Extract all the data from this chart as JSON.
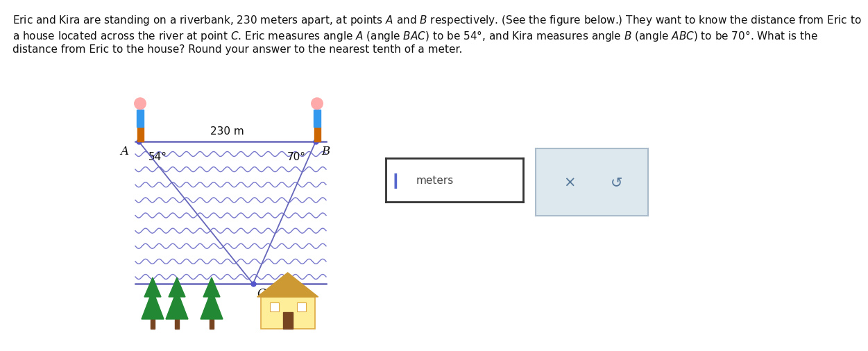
{
  "bg_color": "#ffffff",
  "text_color": "#000000",
  "line1": "Eric and Kira are standing on a riverbank, 230 meters apart, at points ",
  "line1b": "A",
  "line1c": " and ",
  "line1d": "B",
  "line1e": " respectively. (See the figure below.) They want to know the distance from Eric to",
  "line2": "a house located across the river at point ",
  "line2b": "C",
  "line2c": ". Eric measures angle ",
  "line2d": "A",
  "line2e": " (angle ",
  "line2f": "BAC",
  "line2g": ") to be 54°, and Kira measures angle ",
  "line2h": "B",
  "line2i": " (angle ",
  "line2j": "ABC",
  "line2k": ") to be 70°. What is the",
  "line3": "distance from Eric to the house? Round your answer to the nearest tenth of a meter.",
  "A_label": "A",
  "B_label": "B",
  "C_label": "C",
  "dist_label": "230 m",
  "angle_A_label": "54°",
  "angle_B_label": "70°",
  "line_color": "#6666bb",
  "wave_color": "#7777cc",
  "person_blue": "#3399ee",
  "person_skin": "#ffaaaa",
  "person_pants": "#cc6600",
  "tree_green": "#228833",
  "tree_trunk": "#774422",
  "house_yellow": "#ffee99",
  "house_roof": "#cc9933",
  "house_door": "#774422",
  "house_wall_color": "#ddaa44",
  "input_box_edge": "#333333",
  "button_color": "#dde8ee",
  "button_edge": "#aabbcc",
  "meters_label": "meters",
  "x_symbol": "×",
  "refresh_symbol": "↺",
  "cursor_color": "#5566cc"
}
